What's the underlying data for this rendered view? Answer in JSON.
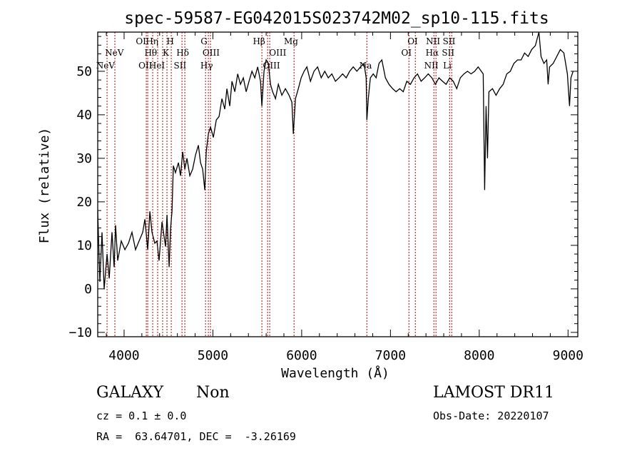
{
  "chart_data": {
    "type": "line",
    "title": "spec-59587-EG042015S023742M02_sp10-115.fits",
    "xlabel": "Wavelength (Å)",
    "ylabel": "Flux (relative)",
    "xlim": [
      3703,
      9110
    ],
    "ylim": [
      -11,
      59
    ],
    "xticks": [
      4000,
      5000,
      6000,
      7000,
      8000,
      9000
    ],
    "xtick_labels": [
      "4000",
      "5000",
      "6000",
      "7000",
      "8000",
      "9000"
    ],
    "yticks": [
      -10,
      0,
      10,
      20,
      30,
      40,
      50
    ],
    "ytick_labels": [
      "−10",
      "0",
      "10",
      "20",
      "30",
      "40",
      "50"
    ],
    "grid": false,
    "series": [
      {
        "name": "spectrum",
        "color": "#000000",
        "x": [
          3703,
          3727,
          3751,
          3775,
          3808,
          3832,
          3864,
          3888,
          3904,
          3928,
          3968,
          4009,
          4049,
          4089,
          4129,
          4169,
          4210,
          4234,
          4266,
          4290,
          4314,
          4346,
          4370,
          4394,
          4427,
          4467,
          4483,
          4507,
          4523,
          4539,
          4555,
          4579,
          4612,
          4636,
          4660,
          4684,
          4708,
          4740,
          4772,
          4804,
          4837,
          4861,
          4885,
          4909,
          4925,
          4949,
          4973,
          5005,
          5038,
          5070,
          5102,
          5134,
          5158,
          5190,
          5215,
          5247,
          5279,
          5311,
          5343,
          5375,
          5407,
          5440,
          5472,
          5504,
          5536,
          5552,
          5576,
          5600,
          5625,
          5649,
          5673,
          5705,
          5737,
          5777,
          5817,
          5858,
          5890,
          5906,
          5930,
          5962,
          5994,
          6027,
          6059,
          6099,
          6139,
          6179,
          6220,
          6260,
          6300,
          6340,
          6380,
          6421,
          6461,
          6501,
          6541,
          6581,
          6622,
          6662,
          6702,
          6726,
          6734,
          6750,
          6774,
          6806,
          6839,
          6871,
          6903,
          6943,
          6983,
          7024,
          7064,
          7104,
          7144,
          7184,
          7225,
          7265,
          7305,
          7345,
          7385,
          7426,
          7466,
          7506,
          7546,
          7586,
          7627,
          7667,
          7707,
          7747,
          7787,
          7828,
          7868,
          7908,
          7948,
          7988,
          8045,
          8061,
          8077,
          8093,
          8109,
          8149,
          8189,
          8230,
          8270,
          8310,
          8350,
          8390,
          8431,
          8471,
          8511,
          8551,
          8591,
          8632,
          8672,
          8696,
          8728,
          8760,
          8776,
          8792,
          8833,
          8873,
          8913,
          8953,
          8993,
          9017,
          9033,
          9057
        ],
        "y": [
          17.8,
          1.6,
          13,
          0,
          8,
          2.4,
          13,
          5,
          14.6,
          6.5,
          11,
          9,
          10.5,
          13,
          9,
          11,
          13,
          16,
          9,
          17.8,
          13,
          10.5,
          11,
          6.5,
          15.4,
          9.7,
          17,
          5,
          13.8,
          17.8,
          28.3,
          26.7,
          29,
          26,
          31.5,
          27.5,
          30,
          26,
          27.5,
          30.7,
          33,
          29,
          27.5,
          22.7,
          31.5,
          35.6,
          37.2,
          34.8,
          38.8,
          39.6,
          43.7,
          41.3,
          46,
          42,
          47.7,
          45.3,
          49.4,
          47,
          48.5,
          45.3,
          47.7,
          50,
          48.5,
          51,
          47.7,
          42,
          50,
          52.6,
          51.8,
          47,
          45.3,
          43.7,
          47,
          44.5,
          46,
          44.5,
          42.9,
          35.6,
          43.7,
          46,
          48.5,
          50,
          51,
          47.7,
          50,
          51,
          48.5,
          50,
          48.5,
          49.4,
          47.7,
          48.5,
          49.4,
          48.5,
          50,
          51,
          50,
          51,
          51.8,
          48.5,
          38.8,
          43.7,
          48.5,
          49.4,
          48.5,
          51.8,
          52.6,
          48.5,
          47,
          46,
          45.3,
          46,
          45.3,
          47.7,
          47,
          48.5,
          49.4,
          47.7,
          48.5,
          49.4,
          48.5,
          47,
          48.5,
          47.7,
          47,
          48.5,
          47.7,
          46,
          48.5,
          49.4,
          50,
          49.4,
          50,
          51,
          49.4,
          22.7,
          42,
          30,
          45.3,
          46,
          44.5,
          46,
          47,
          49.4,
          50,
          51.8,
          52.6,
          52.6,
          54.2,
          53.4,
          55,
          55.9,
          59,
          53.4,
          51.8,
          52.6,
          47,
          51,
          51.8,
          53.4,
          55,
          54.2,
          49.4,
          42,
          48.5,
          50
        ]
      }
    ],
    "line_marker_color": "#cc0000",
    "line_markers": [
      3808,
      3896,
      4250,
      4266,
      4322,
      4378,
      4434,
      4483,
      4531,
      4652,
      4684,
      4917,
      4949,
      4973,
      5552,
      5616,
      5640,
      5914,
      6734,
      7208,
      7280,
      7489,
      7513,
      7666,
      7690
    ],
    "line_labels": [
      [
        {
          "text": "OI",
          "wl": 4190
        },
        {
          "text": "Hη",
          "wl": 4315
        },
        {
          "text": "H",
          "wl": 4520
        },
        {
          "text": "G",
          "wl": 4900
        },
        {
          "text": "Hβ",
          "wl": 5520
        },
        {
          "text": "Mg",
          "wl": 5880
        },
        {
          "text": "OI",
          "wl": 7250
        },
        {
          "text": "NII",
          "wl": 7480
        },
        {
          "text": "SII",
          "wl": 7660
        }
      ],
      [
        {
          "text": "NeV",
          "wl": 3890
        },
        {
          "text": "Hθ",
          "wl": 4300
        },
        {
          "text": "K",
          "wl": 4470
        },
        {
          "text": "Hδ",
          "wl": 4660
        },
        {
          "text": "OIII",
          "wl": 4980
        },
        {
          "text": "OIII",
          "wl": 5730
        },
        {
          "text": "OI",
          "wl": 7180
        },
        {
          "text": "Hα",
          "wl": 7470
        },
        {
          "text": "SII",
          "wl": 7650
        }
      ],
      [
        {
          "text": "NeV",
          "wl": 3790
        },
        {
          "text": "OII",
          "wl": 4240
        },
        {
          "text": "HeI",
          "wl": 4370
        },
        {
          "text": "SII",
          "wl": 4630
        },
        {
          "text": "Hγ",
          "wl": 4930
        },
        {
          "text": "OIII",
          "wl": 5660
        },
        {
          "text": "Na",
          "wl": 6720
        },
        {
          "text": "NII",
          "wl": 7460
        },
        {
          "text": "Li",
          "wl": 7640
        }
      ]
    ]
  },
  "info": {
    "object_type": "GALAXY",
    "subclass": "Non",
    "survey": "LAMOST DR11",
    "cz": "cz = 0.1 ± 0.0",
    "obs_date": "Obs-Date: 20220107",
    "coords": "RA =  63.64701, DEC =  -3.26169"
  }
}
